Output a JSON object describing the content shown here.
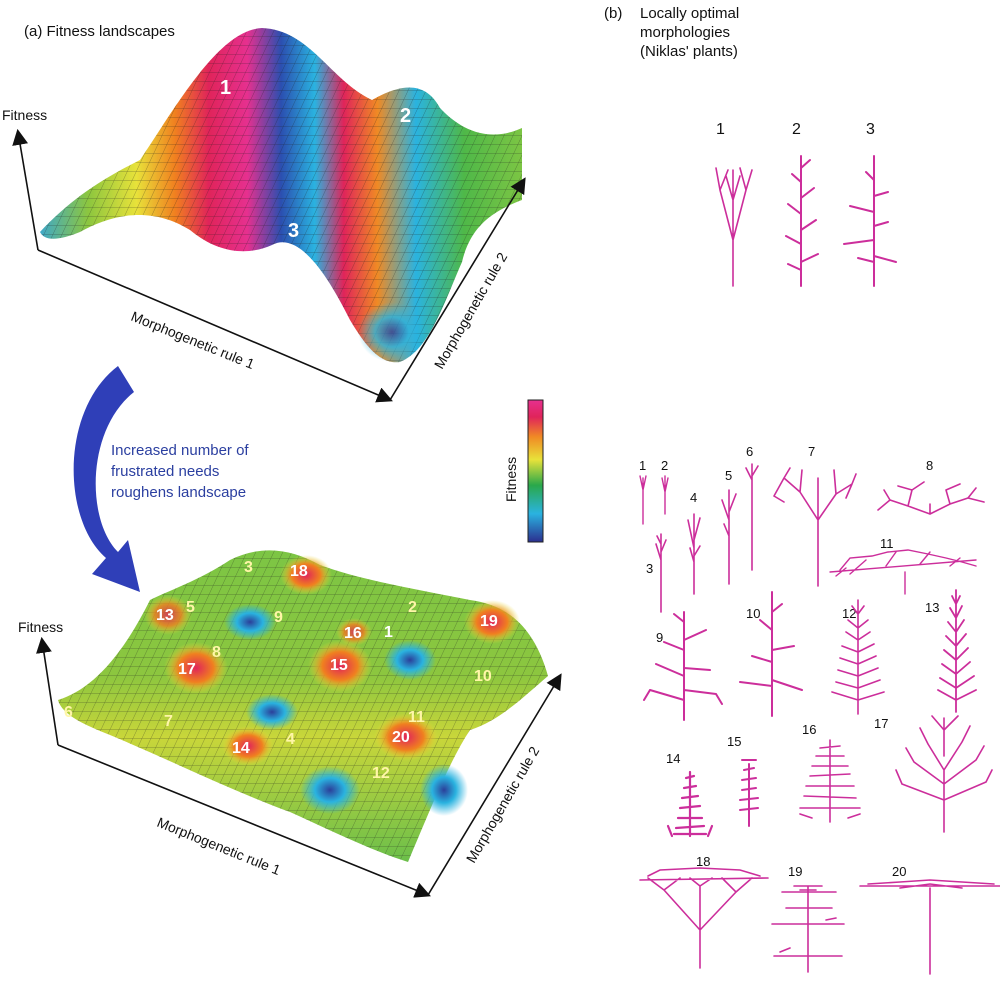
{
  "panel_a": {
    "title": "(a) Fitness landscapes",
    "top": {
      "y_axis": "Fitness",
      "x_axis": "Morphogenetic rule 1",
      "z_axis": "Morphogenetic rule 2",
      "peaks": [
        "1",
        "2",
        "3"
      ]
    },
    "arrow_note": [
      "Increased number of",
      "frustrated needs",
      "roughens landscape"
    ],
    "colorbar_label": "Fitness",
    "bottom": {
      "y_axis": "Fitness",
      "x_axis": "Morphogenetic rule 1",
      "z_axis": "Morphogenetic rule 2",
      "peaks": [
        "1",
        "2",
        "3",
        "4",
        "5",
        "6",
        "7",
        "8",
        "9",
        "10",
        "11",
        "12",
        "13",
        "14",
        "15",
        "16",
        "17",
        "18",
        "19",
        "20"
      ]
    }
  },
  "panel_b": {
    "title_tag": "(b)",
    "title_lines": [
      "Locally optimal",
      "morphologies",
      "(Niklas' plants)"
    ],
    "top_plants": [
      "1",
      "2",
      "3"
    ],
    "bottom_plants": [
      "1",
      "2",
      "3",
      "4",
      "5",
      "6",
      "7",
      "8",
      "9",
      "10",
      "11",
      "12",
      "13",
      "14",
      "15",
      "16",
      "17",
      "18",
      "19",
      "20"
    ]
  },
  "colors": {
    "plant": "#cc2e9b",
    "arrow": "#2f3fb8",
    "note_text": "#2b3fa0",
    "colorbar": [
      "#2b2f8f",
      "#2ab3e0",
      "#2aa84a",
      "#e8e23a",
      "#f08a24",
      "#e0245a",
      "#e6308f"
    ]
  }
}
